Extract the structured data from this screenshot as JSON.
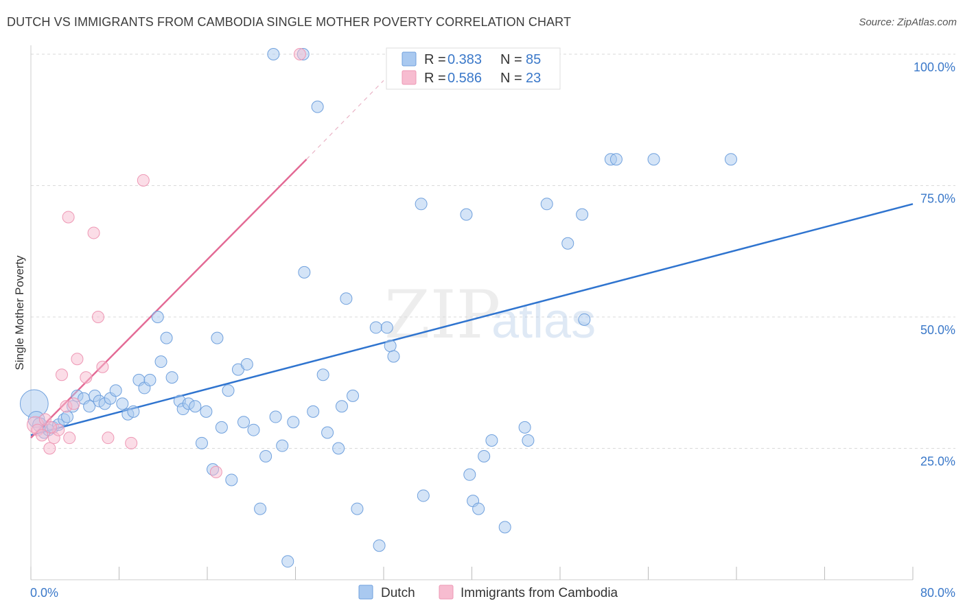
{
  "title": "DUTCH VS IMMIGRANTS FROM CAMBODIA SINGLE MOTHER POVERTY CORRELATION CHART",
  "source": "Source: ZipAtlas.com",
  "watermark": {
    "zip": "ZIP",
    "atlas": "atlas"
  },
  "colors": {
    "dutch_fill": "#a9c9f0",
    "dutch_stroke": "#6fa0dd",
    "dutch_line": "#2f74cf",
    "cambodia_fill": "#f7bcd0",
    "cambodia_stroke": "#ee97b4",
    "cambodia_line": "#e36a95",
    "grid": "#d9d9d9",
    "tick_text": "#3a78c9"
  },
  "stats": {
    "dutch": {
      "r_label": "R =",
      "r_value": "0.383",
      "n_label": "N =",
      "n_value": "85"
    },
    "cambodia": {
      "r_label": "R =",
      "r_value": "0.586",
      "n_label": "N =",
      "n_value": "23"
    }
  },
  "legend": {
    "dutch": "Dutch",
    "cambodia": "Immigrants from Cambodia"
  },
  "chart_data": {
    "type": "scatter",
    "title": "DUTCH VS IMMIGRANTS FROM CAMBODIA SINGLE MOTHER POVERTY CORRELATION CHART",
    "xlabel": "",
    "ylabel": "Single Mother Poverty",
    "xlim": [
      0,
      80
    ],
    "ylim": [
      0,
      100
    ],
    "x_tick_labels": [
      "0.0%",
      "80.0%"
    ],
    "y_tick_values": [
      25,
      50,
      75,
      100
    ],
    "y_tick_labels": [
      "25.0%",
      "50.0%",
      "75.0%",
      "100.0%"
    ],
    "grid": true,
    "legend_position": "bottom-center",
    "series": [
      {
        "name": "Dutch",
        "r": 0.383,
        "n": 85,
        "trend": {
          "x": [
            0,
            80
          ],
          "y": [
            27.5,
            71.5
          ]
        },
        "points": [
          [
            0.3,
            33.5,
            24
          ],
          [
            0.5,
            30.5,
            14
          ],
          [
            0.8,
            29.5,
            12
          ],
          [
            1.2,
            28.0,
            10
          ],
          [
            1.6,
            28.5,
            10
          ],
          [
            2.0,
            29.0,
            10
          ],
          [
            2.5,
            29.5,
            10
          ],
          [
            3.0,
            30.5,
            10
          ],
          [
            3.3,
            31.0,
            10
          ],
          [
            3.8,
            33.0,
            10
          ],
          [
            4.2,
            35.0,
            10
          ],
          [
            4.8,
            34.5,
            10
          ],
          [
            5.3,
            33.0,
            10
          ],
          [
            5.8,
            35.0,
            10
          ],
          [
            6.2,
            34.0,
            10
          ],
          [
            6.7,
            33.5,
            10
          ],
          [
            7.2,
            34.5,
            10
          ],
          [
            7.7,
            36.0,
            10
          ],
          [
            8.3,
            33.5,
            10
          ],
          [
            8.8,
            31.5,
            10
          ],
          [
            9.3,
            32.0,
            10
          ],
          [
            9.8,
            38.0,
            10
          ],
          [
            10.3,
            36.5,
            10
          ],
          [
            10.8,
            38.0,
            10
          ],
          [
            11.5,
            50.0,
            10
          ],
          [
            11.8,
            41.5,
            10
          ],
          [
            12.3,
            46.0,
            10
          ],
          [
            12.8,
            38.5,
            10
          ],
          [
            13.5,
            34.0,
            10
          ],
          [
            13.8,
            32.5,
            10
          ],
          [
            14.3,
            33.5,
            10
          ],
          [
            14.9,
            33.0,
            10
          ],
          [
            15.5,
            26.0,
            10
          ],
          [
            15.9,
            32.0,
            10
          ],
          [
            16.5,
            21.0,
            10
          ],
          [
            16.9,
            46.0,
            10
          ],
          [
            17.3,
            29.0,
            10
          ],
          [
            17.9,
            36.0,
            10
          ],
          [
            18.2,
            19.0,
            10
          ],
          [
            18.8,
            40.0,
            10
          ],
          [
            19.3,
            30.0,
            10
          ],
          [
            19.6,
            41.0,
            10
          ],
          [
            20.2,
            28.5,
            10
          ],
          [
            20.8,
            13.5,
            10
          ],
          [
            21.3,
            23.5,
            10
          ],
          [
            22.2,
            31.0,
            10
          ],
          [
            22.8,
            25.5,
            10
          ],
          [
            23.3,
            3.5,
            10
          ],
          [
            23.8,
            30.0,
            10
          ],
          [
            24.8,
            58.5,
            10
          ],
          [
            25.6,
            32.0,
            10
          ],
          [
            26.0,
            90.0,
            10
          ],
          [
            26.5,
            39.0,
            10
          ],
          [
            26.9,
            28.0,
            10
          ],
          [
            27.9,
            25.0,
            10
          ],
          [
            28.2,
            33.0,
            10
          ],
          [
            28.6,
            53.5,
            10
          ],
          [
            29.2,
            35.0,
            10
          ],
          [
            29.6,
            13.5,
            10
          ],
          [
            31.3,
            48.0,
            10
          ],
          [
            31.6,
            6.5,
            10
          ],
          [
            32.3,
            48.0,
            10
          ],
          [
            32.6,
            44.5,
            10
          ],
          [
            32.9,
            42.5,
            10
          ],
          [
            24.7,
            100.0,
            10
          ],
          [
            22.0,
            100.0,
            10
          ],
          [
            35.4,
            71.5,
            10
          ],
          [
            35.6,
            16.0,
            10
          ],
          [
            39.5,
            69.5,
            10
          ],
          [
            39.8,
            20.0,
            10
          ],
          [
            40.1,
            15.0,
            10
          ],
          [
            40.6,
            13.5,
            10
          ],
          [
            41.1,
            23.5,
            10
          ],
          [
            41.8,
            26.5,
            10
          ],
          [
            43.0,
            10.0,
            10
          ],
          [
            44.8,
            29.0,
            10
          ],
          [
            45.1,
            26.5,
            10
          ],
          [
            46.8,
            71.5,
            10
          ],
          [
            48.7,
            64.0,
            10
          ],
          [
            50.0,
            69.5,
            10
          ],
          [
            50.2,
            49.5,
            10
          ],
          [
            52.6,
            80.0,
            10
          ],
          [
            53.1,
            80.0,
            10
          ],
          [
            56.5,
            80.0,
            10
          ],
          [
            63.5,
            80.0,
            10
          ]
        ]
      },
      {
        "name": "Immigrants from Cambodia",
        "r": 0.586,
        "n": 23,
        "trend": {
          "x": [
            0,
            25
          ],
          "y": [
            27.0,
            80.0
          ]
        },
        "trend_extension": {
          "x": [
            25,
            32
          ],
          "y": [
            80.0,
            95.0
          ]
        },
        "points": [
          [
            0.4,
            29.5,
            14
          ],
          [
            0.6,
            28.5,
            10
          ],
          [
            1.0,
            27.5,
            10
          ],
          [
            1.3,
            30.5,
            10
          ],
          [
            1.7,
            25.0,
            10
          ],
          [
            2.1,
            27.0,
            10
          ],
          [
            2.5,
            28.5,
            10
          ],
          [
            2.8,
            39.0,
            10
          ],
          [
            3.2,
            33.0,
            10
          ],
          [
            3.4,
            69.0,
            10
          ],
          [
            3.5,
            27.0,
            10
          ],
          [
            3.9,
            33.5,
            10
          ],
          [
            4.2,
            42.0,
            10
          ],
          [
            5.0,
            38.5,
            10
          ],
          [
            5.7,
            66.0,
            10
          ],
          [
            6.1,
            50.0,
            10
          ],
          [
            6.5,
            40.5,
            10
          ],
          [
            7.0,
            27.0,
            10
          ],
          [
            9.1,
            26.0,
            10
          ],
          [
            10.2,
            76.0,
            10
          ],
          [
            16.8,
            20.5,
            10
          ],
          [
            24.4,
            100.0,
            10
          ],
          [
            1.8,
            29.0,
            10
          ]
        ]
      }
    ]
  }
}
